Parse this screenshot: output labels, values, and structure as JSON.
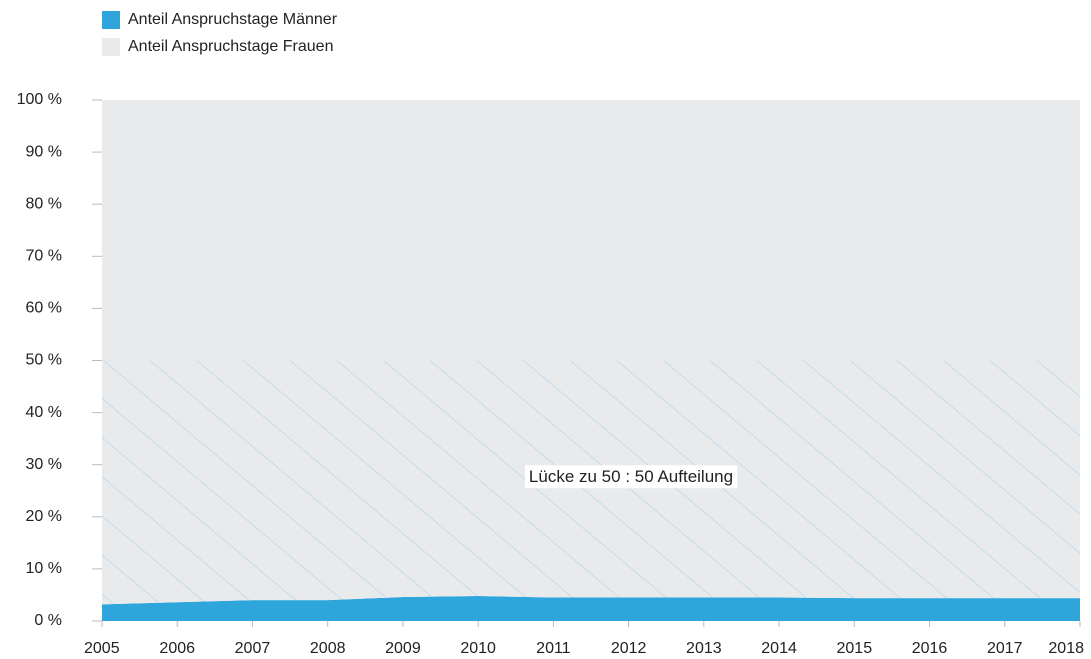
{
  "chart_data": {
    "type": "area",
    "x": [
      2005,
      2006,
      2007,
      2008,
      2009,
      2010,
      2011,
      2012,
      2013,
      2014,
      2015,
      2016,
      2017,
      2018
    ],
    "xlim": [
      2005,
      2018
    ],
    "stacked": true,
    "series": [
      {
        "name": "Anteil Anspruchstage Männer",
        "color": "#2ea6dc",
        "values": [
          3.2,
          3.6,
          4.0,
          4.0,
          4.6,
          4.8,
          4.5,
          4.5,
          4.5,
          4.5,
          4.4,
          4.4,
          4.4,
          4.4
        ]
      },
      {
        "name": "Anteil Anspruchstage Frauen",
        "color": "#e9eaec",
        "values": [
          96.8,
          96.4,
          96.0,
          96.0,
          95.4,
          95.2,
          95.5,
          95.5,
          95.5,
          95.5,
          95.6,
          95.6,
          95.6,
          95.6
        ]
      }
    ],
    "ylim": [
      0,
      100
    ],
    "yticks": [
      {
        "value": 0,
        "label": "0 %"
      },
      {
        "value": 10,
        "label": "10 %"
      },
      {
        "value": 20,
        "label": "20 %"
      },
      {
        "value": 30,
        "label": "30 %"
      },
      {
        "value": 40,
        "label": "40 %"
      },
      {
        "value": 50,
        "label": "50 %"
      },
      {
        "value": 60,
        "label": "60 %"
      },
      {
        "value": 70,
        "label": "70 %"
      },
      {
        "value": 80,
        "label": "80 %"
      },
      {
        "value": 90,
        "label": "90 %"
      },
      {
        "value": 100,
        "label": "100 %"
      }
    ],
    "annotation": {
      "text": "Lücke zu 50 : 50 Aufteilung",
      "target": 50,
      "hatch_color": "#a9d4ef"
    },
    "legend": "top-left"
  }
}
